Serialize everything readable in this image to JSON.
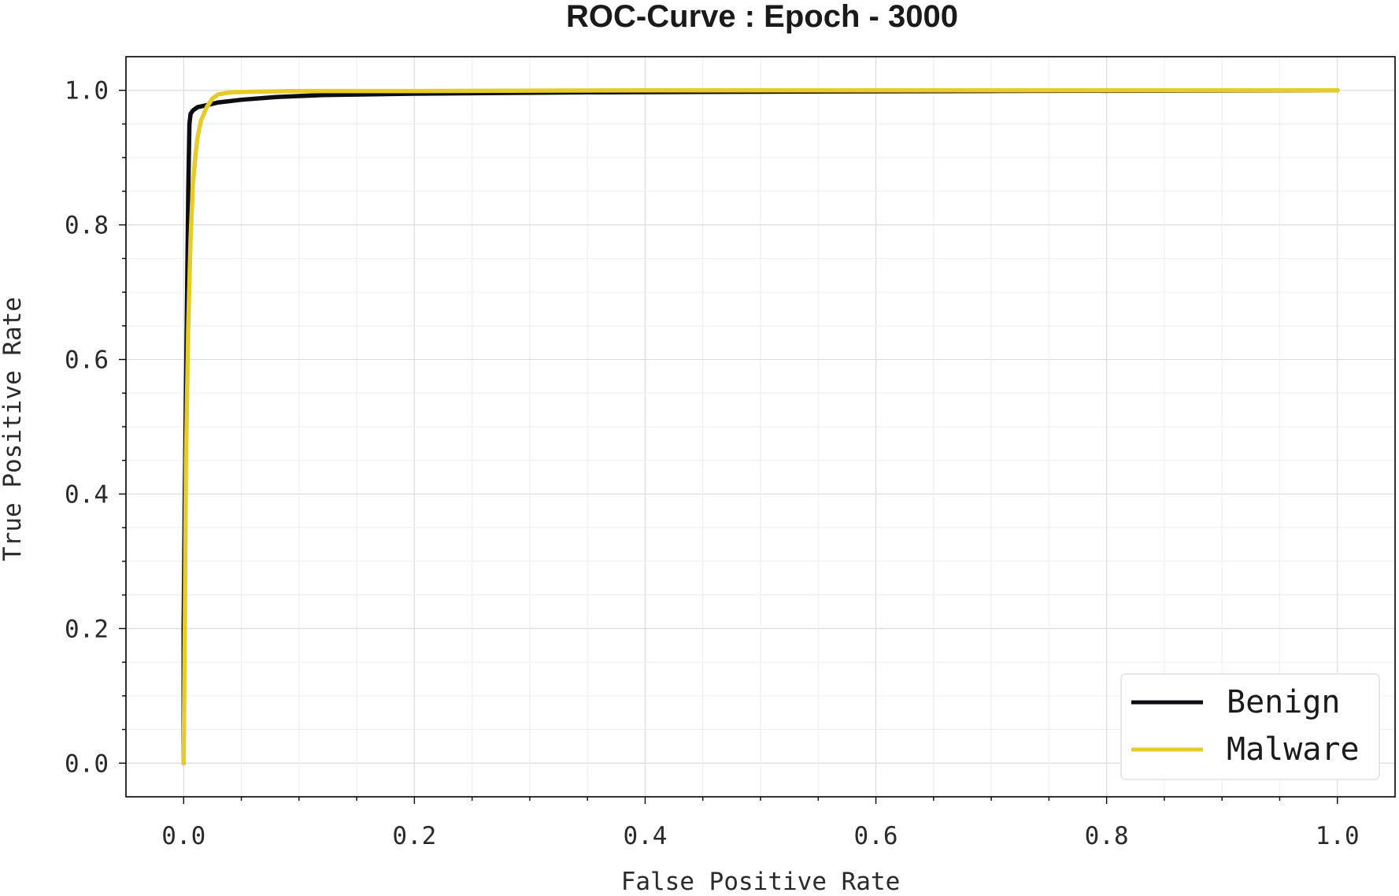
{
  "chart_data": {
    "type": "line",
    "title": "ROC-Curve : Epoch - 3000",
    "xlabel": "False Positive Rate",
    "ylabel": "True Positive Rate",
    "xlim": [
      -0.05,
      1.05
    ],
    "ylim": [
      -0.05,
      1.05
    ],
    "x_ticks": [
      "0.0",
      "0.2",
      "0.4",
      "0.6",
      "0.8",
      "1.0"
    ],
    "y_ticks": [
      "0.0",
      "0.2",
      "0.4",
      "0.6",
      "0.8",
      "1.0"
    ],
    "grid": true,
    "legend_position": "bottom-right",
    "series": [
      {
        "name": "Benign",
        "color": "#0b0d10",
        "x": [
          0.0,
          0.0,
          0.001,
          0.002,
          0.003,
          0.004,
          0.005,
          0.006,
          0.008,
          0.012,
          0.02,
          0.03,
          0.05,
          0.08,
          0.12,
          0.2,
          0.35,
          0.5,
          0.7,
          1.0
        ],
        "y": [
          0.0,
          0.2,
          0.4,
          0.55,
          0.7,
          0.85,
          0.95,
          0.965,
          0.97,
          0.975,
          0.978,
          0.982,
          0.986,
          0.99,
          0.993,
          0.995,
          0.997,
          0.998,
          0.999,
          1.0
        ]
      },
      {
        "name": "Malware",
        "color": "#e6cc29",
        "x": [
          0.0,
          0.001,
          0.002,
          0.004,
          0.006,
          0.008,
          0.01,
          0.012,
          0.015,
          0.02,
          0.025,
          0.03,
          0.04,
          0.06,
          0.1,
          0.2,
          0.4,
          0.6,
          0.8,
          1.0
        ],
        "y": [
          0.0,
          0.2,
          0.45,
          0.65,
          0.78,
          0.86,
          0.9,
          0.93,
          0.955,
          0.975,
          0.988,
          0.994,
          0.997,
          0.998,
          0.999,
          0.999,
          1.0,
          1.0,
          1.0,
          1.0
        ]
      }
    ]
  }
}
